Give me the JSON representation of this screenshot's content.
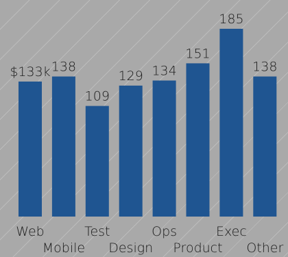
{
  "chart_data": {
    "type": "bar",
    "title": "",
    "xlabel": "",
    "ylabel": "",
    "value_prefix": "$",
    "value_suffix": "k",
    "categories": [
      "Web",
      "Mobile",
      "Test",
      "Design",
      "Ops",
      "Product",
      "Exec",
      "Other"
    ],
    "values": [
      133,
      138,
      109,
      129,
      134,
      151,
      185,
      138
    ],
    "value_labels": [
      "$133k",
      "138",
      "109",
      "129",
      "134",
      "151",
      "185",
      "138"
    ],
    "ylim": [
      0,
      185
    ],
    "grid": false,
    "legend": "none",
    "bar_color": "#1f5591",
    "background_color": "#a9a9a9",
    "text_color": "#1b1b1b"
  }
}
